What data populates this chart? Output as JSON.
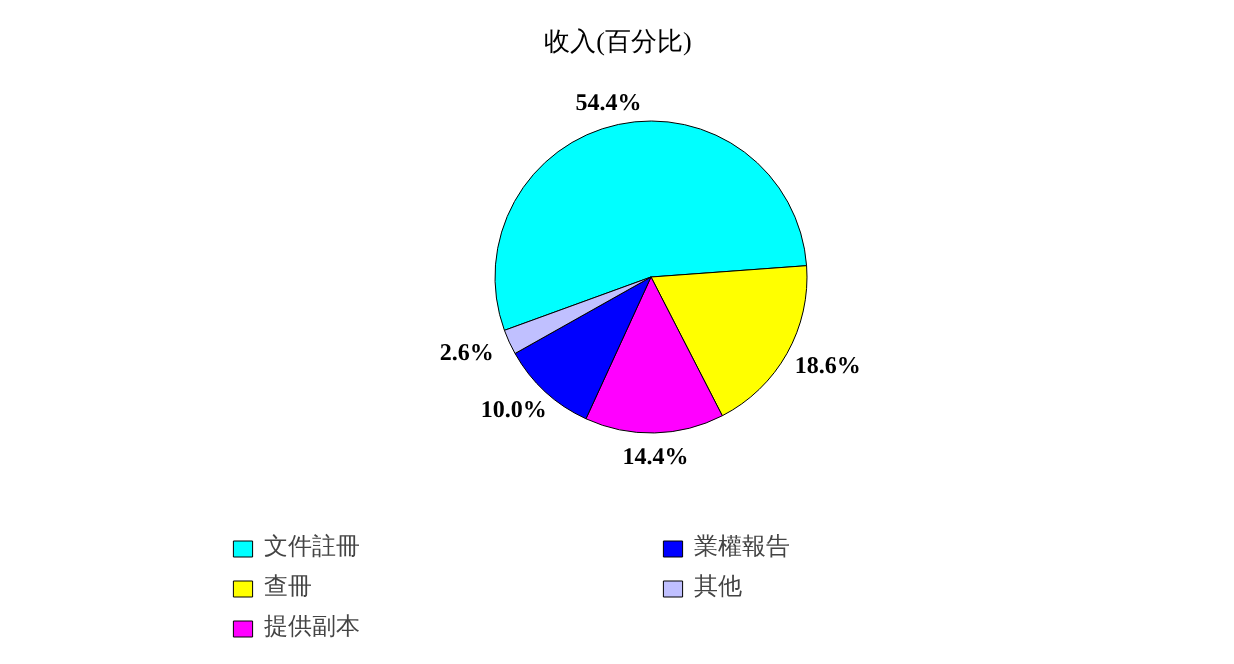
{
  "chart_data": {
    "type": "pie",
    "title": "收入(百分比)",
    "categories": [
      "文件註冊",
      "查冊",
      "提供副本",
      "業權報告",
      "其他"
    ],
    "values": [
      54.4,
      18.6,
      14.4,
      10.0,
      2.6
    ],
    "colors": [
      "#00ffff",
      "#ffff00",
      "#ff00ff",
      "#0000ff",
      "#c0c0ff"
    ],
    "value_labels": [
      "54.4%",
      "18.6%",
      "14.4%",
      "10.0%",
      "2.6%"
    ],
    "legend": "bottom"
  }
}
